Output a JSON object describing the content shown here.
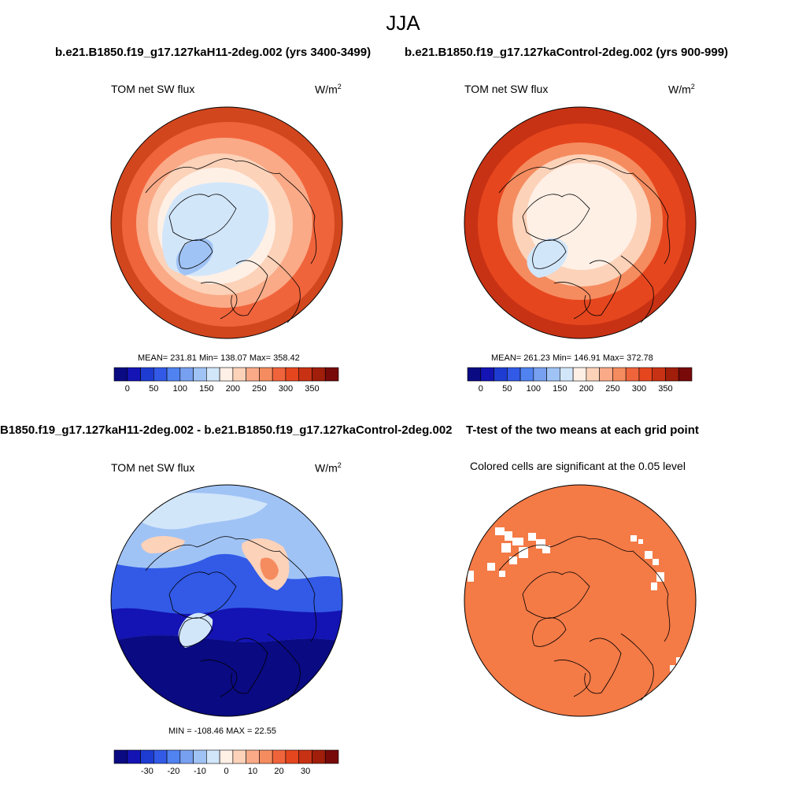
{
  "title": "JJA",
  "panels": {
    "case1": {
      "header": "b.e21.B1850.f19_g17.127kaH11-2deg.002 (yrs 3400-3499)",
      "var_label": "TOM net SW flux",
      "units": "W/m",
      "units_exp": "2",
      "stats": "MEAN= 231.81  Min= 138.07  Max= 358.42"
    },
    "case2": {
      "header": "b.e21.B1850.f19_g17.127kaControl-2deg.002 (yrs 900-999)",
      "var_label": "TOM net SW flux",
      "units": "W/m",
      "units_exp": "2",
      "stats": "MEAN= 261.23  Min= 146.91  Max= 372.78"
    },
    "diff": {
      "header": "B1850.f19_g17.127kaH11-2deg.002 - b.e21.B1850.f19_g17.127kaControl-2deg.002",
      "var_label": "TOM net SW flux",
      "units": "W/m",
      "units_exp": "2",
      "stats": "MIN = -108.46 MAX =  22.55"
    },
    "ttest": {
      "header": "T-test of the two means at each grid point",
      "note": "Colored cells are significant at the 0.05 level"
    }
  },
  "colorbar_abs": {
    "colors": [
      "#0a0a82",
      "#1414b4",
      "#1e3cd2",
      "#325ae6",
      "#5082f0",
      "#78a0f0",
      "#a0c3f5",
      "#d2e6fa",
      "#fff0e6",
      "#fcd2b9",
      "#faaa87",
      "#f58c5f",
      "#f0643c",
      "#e6461e",
      "#c83214",
      "#a01e0a",
      "#780a0a"
    ],
    "tick_values": [
      0,
      50,
      100,
      150,
      200,
      250,
      300,
      350
    ],
    "tick_labels": [
      "0",
      "50",
      "100",
      "150",
      "200",
      "250",
      "300",
      "350"
    ],
    "min": -25,
    "max": 400
  },
  "colorbar_diff": {
    "colors": [
      "#0a0a82",
      "#1414b4",
      "#1e3cd2",
      "#325ae6",
      "#5082f0",
      "#78a0f0",
      "#a0c3f5",
      "#d2e6fa",
      "#fff0e6",
      "#fcd2b9",
      "#faaa87",
      "#f58c5f",
      "#f0643c",
      "#e6461e",
      "#c83214",
      "#a01e0a",
      "#780a0a"
    ],
    "tick_values": [
      -30,
      -20,
      -10,
      0,
      10,
      20,
      30
    ],
    "tick_labels": [
      "-30",
      "-20",
      "-10",
      "0",
      "10",
      "20",
      "30"
    ],
    "min": -42.5,
    "max": 42.5
  },
  "map_colors": {
    "case1": {
      "outer": "#d2461e",
      "mid": "#f0643c",
      "inner": "#faaa87",
      "pale": "#fcd2b9",
      "core": "#fff0e6",
      "ice": "#d2e6fa",
      "ice2": "#a0c3f5"
    },
    "case2": {
      "outer": "#c83214",
      "mid": "#e6461e",
      "inner": "#f58c5f",
      "pale": "#fcd2b9",
      "core": "#fff0e6",
      "ice": "#d2e6fa",
      "ice2": "#a0c3f5"
    },
    "diff": {
      "outer": "#5082f0",
      "mid": "#325ae6",
      "deep": "#1414b4",
      "deepest": "#0a0a82",
      "light": "#a0c3f5",
      "pale": "#d2e6fa",
      "warm": "#fcd2b9",
      "warm2": "#f58c5f"
    },
    "ttest": {
      "fill": "#f47a46",
      "hole": "#ffffff"
    }
  }
}
